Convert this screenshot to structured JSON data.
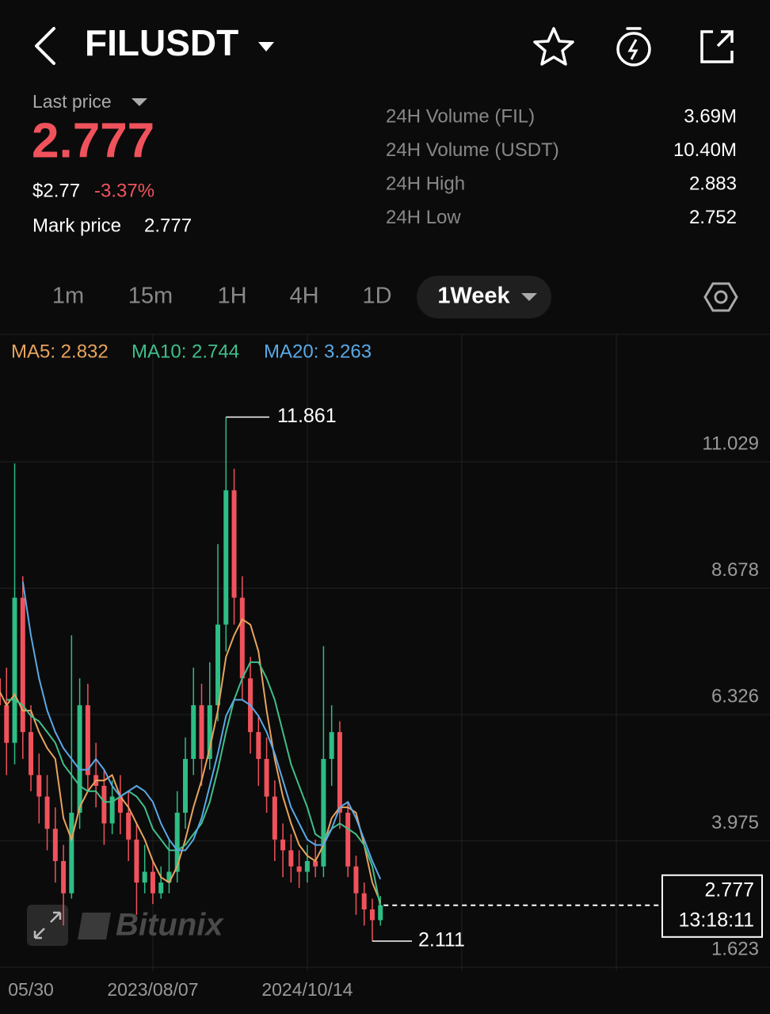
{
  "header": {
    "symbol": "FILUSDT"
  },
  "ticker": {
    "last_price_label": "Last price",
    "last_price": "2.777",
    "usd_price": "$2.77",
    "change": "-3.37%",
    "mark_price_label": "Mark price",
    "mark_price": "2.777"
  },
  "stats": [
    {
      "label": "24H Volume (FIL)",
      "value": "3.69M"
    },
    {
      "label": "24H Volume (USDT)",
      "value": "10.40M"
    },
    {
      "label": "24H High",
      "value": "2.883"
    },
    {
      "label": "24H Low",
      "value": "2.752"
    }
  ],
  "intervals": [
    "1m",
    "15m",
    "1H",
    "4H",
    "1D",
    "1Week"
  ],
  "active_interval": 5,
  "chart_data": {
    "type": "candlestick",
    "categories": [
      null,
      null,
      null,
      null,
      "05/30",
      null,
      null,
      null,
      null,
      null,
      null,
      null,
      null,
      null,
      null,
      null,
      null,
      null,
      null,
      "2023/08/07",
      null,
      null,
      null,
      null,
      null,
      null,
      null,
      null,
      null,
      null,
      null,
      null,
      null,
      null,
      null,
      null,
      null,
      null,
      "2024/10/14",
      null,
      null,
      null,
      null,
      null,
      null,
      null,
      null,
      null
    ],
    "open": [
      7.0,
      6.5,
      5.8,
      8.5,
      6.0,
      5.2,
      4.8,
      4.2,
      3.6,
      3.0,
      4.5,
      6.5,
      5.2,
      5.0,
      4.3,
      4.8,
      4.5,
      4.0,
      3.2,
      3.4,
      3.0,
      3.2,
      3.4,
      4.5,
      5.5,
      6.5,
      5.5,
      6.5,
      8.0,
      10.5,
      8.5,
      7.0,
      6.0,
      5.5,
      4.8,
      4.0,
      3.8,
      3.5,
      3.4,
      3.6,
      3.5,
      5.5,
      6.0,
      4.5,
      3.5,
      3.0,
      2.7,
      2.5
    ],
    "high": [
      10.3,
      7.2,
      11.0,
      8.9,
      6.5,
      5.6,
      5.2,
      4.6,
      3.9,
      7.8,
      7.0,
      6.9,
      5.8,
      5.3,
      5.1,
      5.2,
      4.9,
      4.3,
      3.9,
      3.6,
      3.5,
      4.0,
      4.9,
      5.9,
      7.2,
      6.9,
      7.3,
      9.5,
      11.861,
      10.9,
      8.9,
      7.4,
      6.3,
      5.9,
      5.1,
      4.3,
      4.1,
      3.8,
      3.9,
      4.0,
      7.6,
      6.5,
      6.2,
      4.7,
      3.7,
      3.2,
      2.9,
      2.95
    ],
    "low": [
      5.8,
      5.2,
      5.4,
      5.5,
      4.9,
      4.3,
      3.8,
      3.2,
      2.4,
      2.9,
      4.2,
      4.9,
      4.6,
      3.9,
      4.1,
      4.1,
      3.6,
      2.6,
      3.0,
      2.8,
      2.9,
      3.0,
      3.2,
      4.2,
      5.2,
      5.0,
      5.3,
      6.2,
      7.5,
      8.0,
      6.6,
      5.6,
      5.0,
      4.5,
      3.6,
      3.3,
      3.2,
      3.1,
      3.2,
      3.3,
      3.3,
      5.0,
      4.2,
      3.3,
      2.6,
      2.4,
      2.111,
      2.4
    ],
    "close": [
      6.5,
      5.8,
      8.5,
      6.0,
      5.2,
      4.8,
      4.2,
      3.6,
      3.0,
      4.5,
      6.5,
      5.2,
      5.0,
      4.3,
      4.8,
      4.5,
      4.0,
      3.2,
      3.4,
      3.0,
      3.2,
      3.4,
      4.5,
      5.5,
      6.5,
      5.5,
      6.5,
      8.0,
      10.5,
      8.5,
      7.0,
      6.0,
      5.5,
      4.8,
      4.0,
      3.8,
      3.5,
      3.4,
      3.6,
      3.5,
      5.5,
      6.0,
      4.5,
      3.5,
      3.0,
      2.7,
      2.5,
      2.777
    ],
    "up_color": "#2ebd85",
    "down_color": "#f0525c",
    "series": [
      {
        "name": "MA5: 2.832",
        "color": "#e8a35d",
        "values": [
          6.8,
          6.5,
          6.7,
          6.4,
          6.4,
          6.0,
          5.7,
          5.5,
          4.4,
          4.0,
          4.6,
          4.9,
          5.1,
          5.1,
          5.2,
          4.8,
          4.6,
          4.3,
          4.0,
          3.6,
          3.3,
          3.2,
          3.5,
          4.0,
          4.6,
          5.1,
          5.7,
          6.4,
          7.4,
          7.8,
          8.1,
          8.0,
          7.5,
          6.4,
          5.5,
          4.8,
          4.3,
          3.9,
          3.7,
          3.6,
          3.9,
          4.4,
          4.6,
          4.6,
          4.5,
          3.9,
          3.2,
          2.832
        ]
      },
      {
        "name": "MA10: 2.744",
        "color": "#3fbf8a",
        "values": [
          null,
          6.6,
          6.6,
          6.5,
          6.3,
          6.2,
          6.0,
          5.8,
          5.4,
          5.2,
          5.0,
          4.9,
          4.9,
          4.7,
          4.7,
          4.8,
          4.9,
          4.8,
          4.6,
          4.2,
          4.0,
          3.8,
          3.8,
          3.9,
          4.1,
          4.3,
          4.7,
          5.3,
          6.0,
          6.6,
          7.0,
          7.3,
          7.3,
          7.0,
          6.6,
          6.0,
          5.4,
          5.0,
          4.6,
          4.1,
          4.0,
          4.2,
          4.3,
          4.2,
          4.1,
          3.9,
          3.5,
          2.744
        ]
      },
      {
        "name": "MA20: 3.263",
        "color": "#5aa9e6",
        "values": [
          null,
          null,
          null,
          8.8,
          7.8,
          7.0,
          6.4,
          6.0,
          5.7,
          5.5,
          5.3,
          5.3,
          5.5,
          5.3,
          5.0,
          4.8,
          4.9,
          5.0,
          4.9,
          4.7,
          4.3,
          4.0,
          3.8,
          3.8,
          4.0,
          4.4,
          5.0,
          5.6,
          6.3,
          6.6,
          6.6,
          6.5,
          6.3,
          6.0,
          5.6,
          5.1,
          4.6,
          4.3,
          4.0,
          3.9,
          3.9,
          4.2,
          4.6,
          4.7,
          4.4,
          4.0,
          3.6,
          3.263
        ]
      }
    ],
    "ylim": [
      1.55,
      13.402
    ],
    "yticks": [
      11.029,
      8.678,
      6.326,
      3.975,
      1.623
    ],
    "grid": true,
    "countdown": "13:18:11",
    "watermark": "Bitunix"
  }
}
